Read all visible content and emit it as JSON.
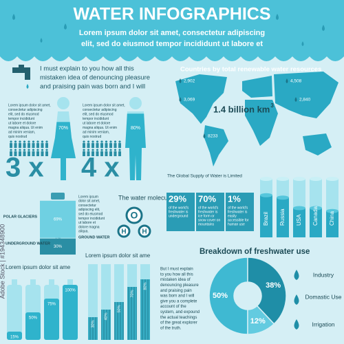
{
  "header": {
    "title": "WATER INFOGRAPHICS",
    "subtitle": [
      "Lorem ipsum dolor sit amet, consectetur adipiscing",
      "elit, sed do eiusmod tempor incididunt ut labore et"
    ]
  },
  "intro": [
    "I must explain to you how all this",
    "mistaken idea of denouncing pleasure",
    "and praising pain was born and I will"
  ],
  "watermark": "Adobe Stock | #194348900",
  "map": {
    "title": "Countries by total renewable water resources",
    "labels": [
      "2,902",
      "4,508",
      "3,069",
      "2,840",
      "8233"
    ],
    "total": "1.4 billion km",
    "total_sup": "3"
  },
  "woman": {
    "text": [
      "Lorem ipsum dolor sit amet,",
      "consectetur adipiscing",
      "elit, sed do eiusmod",
      "tempor incididunt",
      "ut labore et dolore",
      "magna aliqua. Ut enim",
      "ad minim veniam,",
      "quis nostrud"
    ],
    "value": 70,
    "value_label": "70%",
    "multiplier": "3 x"
  },
  "man": {
    "text": [
      "Lorem ipsum dolor sit amet,",
      "consectetur adipiscing",
      "elit, sed do eiusmod",
      "tempor incididunt",
      "ut labore et dolore",
      "magna aliqua. Ut enim",
      "ad minim veniam,",
      "quis nostrud"
    ],
    "value": 80,
    "value_label": "80%",
    "multiplier": "4 x"
  },
  "bottle": {
    "text": [
      "Lorem ipsum",
      "dolor sit amet,",
      "consectetur",
      "adipiscing elit,",
      "sed do eiusmod",
      "tempor incididunt",
      "ut labore et",
      "dolore magna",
      "aliqua."
    ],
    "segments": [
      {
        "label": "POLAR GLACIERS",
        "value": 69,
        "value_label": "69%"
      },
      {
        "label": "GROUND WATER",
        "value": 1,
        "value_label": "1%"
      },
      {
        "label": "UNDERGROUND WATER",
        "value": 30,
        "value_label": "30%"
      }
    ]
  },
  "molecule": {
    "title": "The water molecule",
    "atoms": [
      "O",
      "H",
      "H"
    ]
  },
  "supply": {
    "title": "The Global Supply of Water is Limited",
    "facts": [
      {
        "value": "29%",
        "text": [
          "of the world's",
          "freshwater is",
          "underground"
        ]
      },
      {
        "value": "70%",
        "text": [
          "of the world's",
          "freshwater is",
          "ice form or",
          "snow cover on",
          "mountains"
        ]
      },
      {
        "value": "1%",
        "text": [
          "of the world's",
          "freshwater is",
          "easily",
          "accessible for",
          "human use"
        ]
      }
    ]
  },
  "countries": {
    "categories": [
      "Brazil",
      "Russia",
      "USA",
      "Canada",
      "China"
    ],
    "values": [
      72,
      68,
      50,
      50,
      45
    ]
  },
  "breakdown": {
    "title": "Breakdown of freshwater use",
    "values": [
      50,
      38,
      12
    ],
    "value_labels": [
      "50%",
      "38%",
      "12%"
    ],
    "labels": [
      "Industry",
      "Domastic Use",
      "Irrigation"
    ]
  },
  "bottles": {
    "title": "Lorem ipsum dolor sit ame",
    "values": [
      15,
      50,
      75,
      100
    ],
    "value_labels": [
      "15%",
      "50%",
      "75%",
      "100%"
    ]
  },
  "bars": {
    "title": "Lorem ipsum dolor sit ame",
    "values": [
      30,
      40,
      50,
      70,
      80
    ],
    "value_labels": [
      "30%",
      "40%",
      "50%",
      "70%",
      "80%"
    ]
  },
  "paragraph": [
    "But I must explain",
    "to you how all this",
    "mistaken idea of",
    "denouncing pleasure",
    "and praising pain",
    "was born and I will",
    "give you a complete",
    "account of the",
    "system, and expound",
    "the actual teachings",
    "of the great explorer",
    "of the truth."
  ]
}
